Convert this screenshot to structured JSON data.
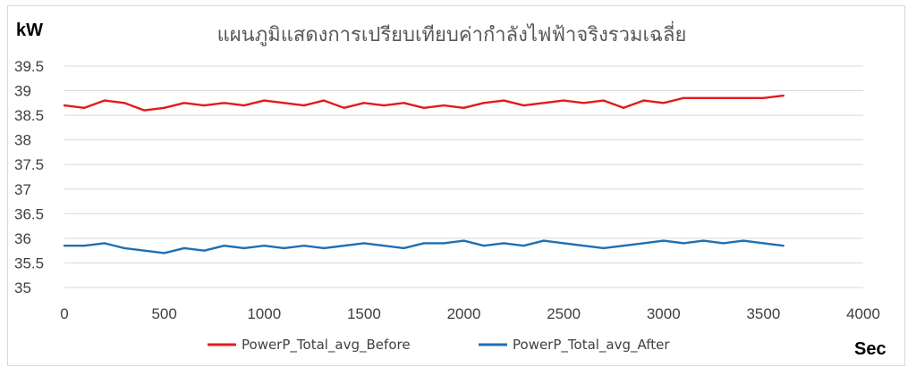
{
  "chart_data": {
    "type": "line",
    "title": "แผนภูมิแสดงการเปรียบเทียบค่ากำลังไฟฟ้าจริงรวมเฉลี่ย",
    "ylabel": "kW",
    "xlabel": "Sec",
    "xlim": [
      0,
      4000
    ],
    "ylim": [
      35,
      39.5
    ],
    "xticks": [
      0,
      500,
      1000,
      1500,
      2000,
      2500,
      3000,
      3500,
      4000
    ],
    "yticks": [
      35,
      35.5,
      36,
      36.5,
      37,
      37.5,
      38,
      38.5,
      39,
      39.5
    ],
    "xtick_labels": [
      "0",
      "500",
      "1000",
      "1500",
      "2000",
      "2500",
      "3000",
      "3500",
      "4000"
    ],
    "ytick_labels": [
      "35",
      "35.5",
      "36",
      "36.5",
      "37",
      "37.5",
      "38",
      "38.5",
      "39",
      "39.5"
    ],
    "grid": "horizontal",
    "legend_position": "bottom",
    "series": [
      {
        "name": "PowerP_Total_avg_Before",
        "color": "#e31a1c",
        "x": [
          0,
          100,
          200,
          300,
          400,
          500,
          600,
          700,
          800,
          900,
          1000,
          1100,
          1200,
          1300,
          1400,
          1500,
          1600,
          1700,
          1800,
          1900,
          2000,
          2100,
          2200,
          2300,
          2400,
          2500,
          2600,
          2700,
          2800,
          2900,
          3000,
          3100,
          3200,
          3300,
          3400,
          3500,
          3600
        ],
        "y": [
          38.7,
          38.65,
          38.8,
          38.75,
          38.6,
          38.65,
          38.75,
          38.7,
          38.75,
          38.7,
          38.8,
          38.75,
          38.7,
          38.8,
          38.65,
          38.75,
          38.7,
          38.75,
          38.65,
          38.7,
          38.65,
          38.75,
          38.8,
          38.7,
          38.75,
          38.8,
          38.75,
          38.8,
          38.65,
          38.8,
          38.75,
          38.85,
          38.85,
          38.85,
          38.85,
          38.85,
          38.9
        ]
      },
      {
        "name": "PowerP_Total_avg_After",
        "color": "#1f6fb2",
        "x": [
          0,
          100,
          200,
          300,
          400,
          500,
          600,
          700,
          800,
          900,
          1000,
          1100,
          1200,
          1300,
          1400,
          1500,
          1600,
          1700,
          1800,
          1900,
          2000,
          2100,
          2200,
          2300,
          2400,
          2500,
          2600,
          2700,
          2800,
          2900,
          3000,
          3100,
          3200,
          3300,
          3400,
          3500,
          3600
        ],
        "y": [
          35.85,
          35.85,
          35.9,
          35.8,
          35.75,
          35.7,
          35.8,
          35.75,
          35.85,
          35.8,
          35.85,
          35.8,
          35.85,
          35.8,
          35.85,
          35.9,
          35.85,
          35.8,
          35.9,
          35.9,
          35.95,
          35.85,
          35.9,
          35.85,
          35.95,
          35.9,
          35.85,
          35.8,
          35.85,
          35.9,
          35.95,
          35.9,
          35.95,
          35.9,
          35.95,
          35.9,
          35.85
        ]
      }
    ]
  }
}
